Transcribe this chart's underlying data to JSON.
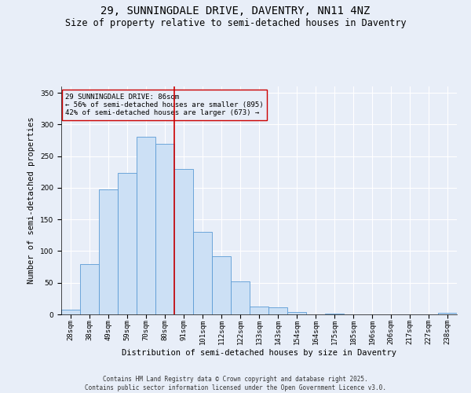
{
  "title": "29, SUNNINGDALE DRIVE, DAVENTRY, NN11 4NZ",
  "subtitle": "Size of property relative to semi-detached houses in Daventry",
  "xlabel": "Distribution of semi-detached houses by size in Daventry",
  "ylabel": "Number of semi-detached properties",
  "categories": [
    "28sqm",
    "38sqm",
    "49sqm",
    "59sqm",
    "70sqm",
    "80sqm",
    "91sqm",
    "101sqm",
    "112sqm",
    "122sqm",
    "133sqm",
    "143sqm",
    "154sqm",
    "164sqm",
    "175sqm",
    "185sqm",
    "196sqm",
    "206sqm",
    "217sqm",
    "227sqm",
    "238sqm"
  ],
  "values": [
    8,
    80,
    197,
    224,
    280,
    270,
    230,
    130,
    92,
    52,
    12,
    11,
    4,
    0,
    1,
    0,
    0,
    0,
    0,
    0,
    3
  ],
  "bar_color": "#cce0f5",
  "bar_edge_color": "#5b9bd5",
  "vline_x_index": 5.5,
  "property_label": "29 SUNNINGDALE DRIVE: 86sqm",
  "pct_smaller": 56,
  "count_smaller": 895,
  "pct_larger": 42,
  "count_larger": 673,
  "annotation_box_edge": "#cc0000",
  "vline_color": "#cc0000",
  "ylim": [
    0,
    360
  ],
  "yticks": [
    0,
    50,
    100,
    150,
    200,
    250,
    300,
    350
  ],
  "background_color": "#e8eef8",
  "grid_color": "#ffffff",
  "footer_line1": "Contains HM Land Registry data © Crown copyright and database right 2025.",
  "footer_line2": "Contains public sector information licensed under the Open Government Licence v3.0.",
  "title_fontsize": 10,
  "subtitle_fontsize": 8.5,
  "axis_label_fontsize": 7.5,
  "tick_fontsize": 6.5,
  "annotation_fontsize": 6.5,
  "footer_fontsize": 5.5
}
